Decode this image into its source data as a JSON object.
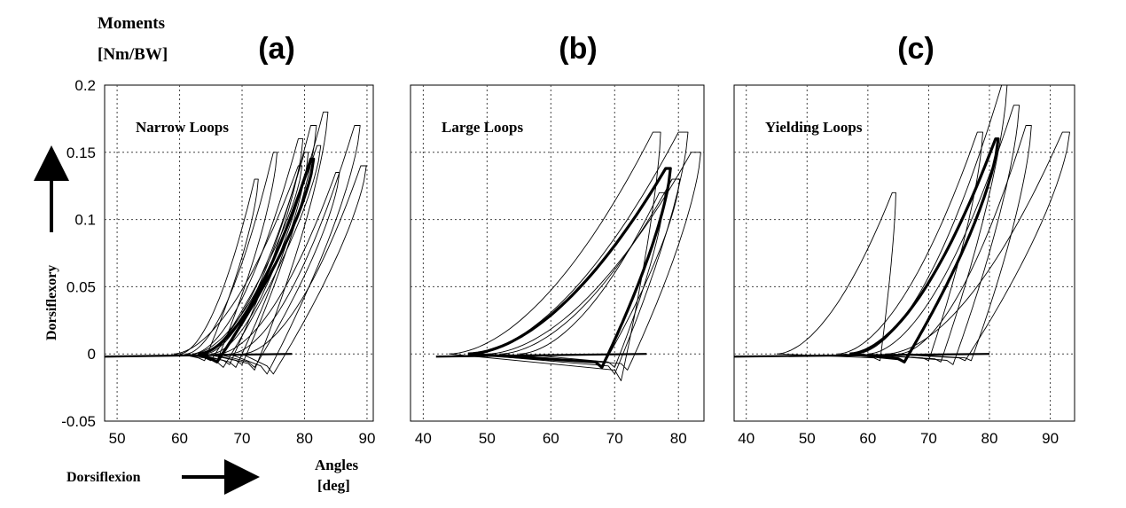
{
  "figure": {
    "ylabel_line1": "Moments",
    "ylabel_line2": "[Nm/BW]",
    "ylabel_side": "Dorsiflexory",
    "xlabel_left": "Dorsiflexion",
    "xlabel_right_line1": "Angles",
    "xlabel_right_line2": "[deg]"
  },
  "chart_data": [
    {
      "type": "line",
      "panel_label": "(a)",
      "annotation": "Narrow Loops",
      "xlim": [
        48,
        91
      ],
      "ylim": [
        -0.05,
        0.2
      ],
      "xticks": [
        50,
        60,
        70,
        80,
        90
      ],
      "yticks": [
        -0.05,
        0,
        0.05,
        0.1,
        0.15,
        0.2
      ],
      "ytick_labels": [
        "-0.05",
        "0",
        "0.05",
        "0.1",
        "0.15",
        "0.2"
      ],
      "grid": true,
      "loops": [
        {
          "x0": 61,
          "x1": 75,
          "peak": 0.15,
          "reverse": 66,
          "bottom": -0.005,
          "width": 2
        },
        {
          "x0": 60,
          "x1": 72,
          "peak": 0.13,
          "reverse": 64,
          "bottom": -0.005,
          "width": 2
        },
        {
          "x0": 62,
          "x1": 79,
          "peak": 0.16,
          "reverse": 68,
          "bottom": -0.008,
          "width": 2.5
        },
        {
          "x0": 63,
          "x1": 80,
          "peak": 0.15,
          "reverse": 69,
          "bottom": -0.01,
          "width": 2
        },
        {
          "x0": 64,
          "x1": 81,
          "peak": 0.17,
          "reverse": 70,
          "bottom": -0.008,
          "width": 3
        },
        {
          "x0": 65,
          "x1": 83,
          "peak": 0.18,
          "reverse": 72,
          "bottom": -0.012,
          "width": 2.5
        },
        {
          "x0": 66,
          "x1": 85,
          "peak": 0.135,
          "reverse": 72,
          "bottom": -0.01,
          "width": 2
        },
        {
          "x0": 68,
          "x1": 88,
          "peak": 0.17,
          "reverse": 74,
          "bottom": -0.015,
          "width": 3
        },
        {
          "x0": 70,
          "x1": 89,
          "peak": 0.14,
          "reverse": 75,
          "bottom": -0.015,
          "width": 3
        },
        {
          "x0": 59,
          "x1": 79,
          "peak": 0.14,
          "reverse": 65,
          "bottom": -0.005,
          "width": 2
        },
        {
          "x0": 62,
          "x1": 82,
          "peak": 0.155,
          "reverse": 67,
          "bottom": -0.01,
          "width": 2
        }
      ],
      "mean_loop": {
        "x0": 63,
        "x1": 81,
        "peak": 0.145,
        "reverse": 66,
        "bottom": -0.006,
        "width": 1.5
      },
      "baseline": [
        48,
        78
      ]
    },
    {
      "type": "line",
      "panel_label": "(b)",
      "annotation": "Large Loops",
      "xlim": [
        38,
        84
      ],
      "ylim": [
        -0.05,
        0.2
      ],
      "xticks": [
        40,
        50,
        60,
        70,
        80
      ],
      "grid": true,
      "loops": [
        {
          "x0": 44,
          "x1": 76,
          "peak": 0.165,
          "reverse": 71,
          "bottom": -0.02,
          "width": 4
        },
        {
          "x0": 47,
          "x1": 80,
          "peak": 0.165,
          "reverse": 70,
          "bottom": -0.015,
          "width": 5
        },
        {
          "x0": 50,
          "x1": 82,
          "peak": 0.15,
          "reverse": 72,
          "bottom": -0.012,
          "width": 5
        },
        {
          "x0": 52,
          "x1": 79,
          "peak": 0.13,
          "reverse": 68,
          "bottom": -0.01,
          "width": 4
        },
        {
          "x0": 55,
          "x1": 77,
          "peak": 0.12,
          "reverse": 70,
          "bottom": -0.01,
          "width": 3
        }
      ],
      "mean_loop": {
        "x0": 47,
        "x1": 78,
        "peak": 0.138,
        "reverse": 68,
        "bottom": -0.01,
        "width": 2.5
      },
      "baseline": [
        42,
        75
      ]
    },
    {
      "type": "line",
      "panel_label": "(c)",
      "annotation": "Yielding Loops",
      "xlim": [
        38,
        94
      ],
      "ylim": [
        -0.05,
        0.2
      ],
      "xticks": [
        40,
        50,
        60,
        70,
        80,
        90
      ],
      "grid": true,
      "loops": [
        {
          "x0": 45,
          "x1": 64,
          "peak": 0.12,
          "reverse": 62,
          "bottom": -0.005,
          "width": 2
        },
        {
          "x0": 55,
          "x1": 78,
          "peak": 0.165,
          "reverse": 70,
          "bottom": -0.005,
          "width": 3
        },
        {
          "x0": 58,
          "x1": 82,
          "peak": 0.2,
          "reverse": 72,
          "bottom": -0.006,
          "width": 3
        },
        {
          "x0": 60,
          "x1": 84,
          "peak": 0.185,
          "reverse": 74,
          "bottom": -0.008,
          "width": 3
        },
        {
          "x0": 63,
          "x1": 92,
          "peak": 0.165,
          "reverse": 76,
          "bottom": -0.005,
          "width": 4
        },
        {
          "x0": 65,
          "x1": 86,
          "peak": 0.17,
          "reverse": 77,
          "bottom": -0.005,
          "width": 3
        }
      ],
      "mean_loop": {
        "x0": 57,
        "x1": 81,
        "peak": 0.16,
        "reverse": 66,
        "bottom": -0.006,
        "width": 1.5
      },
      "baseline": [
        38,
        80
      ]
    }
  ]
}
